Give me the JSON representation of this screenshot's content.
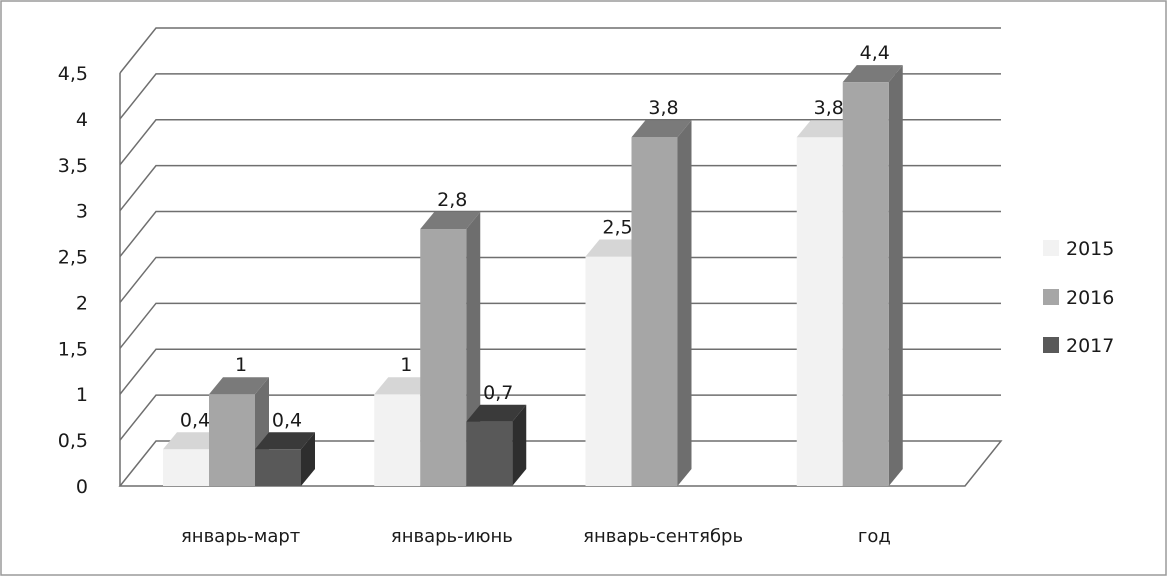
{
  "chart_data": {
    "type": "bar",
    "title": "",
    "xlabel": "",
    "ylabel": "",
    "categories": [
      "январь-март",
      "январь-июнь",
      "январь-сентябрь",
      "год"
    ],
    "series": [
      {
        "name": "2015",
        "values": [
          0.4,
          1,
          2.5,
          3.8
        ],
        "labels": [
          "0,4",
          "1",
          "2,5",
          "3,8"
        ],
        "color": "#f2f2f2",
        "side_color": "#dddddd",
        "top_color": "#d6d6d6"
      },
      {
        "name": "2016",
        "values": [
          1,
          2.8,
          3.8,
          4.4
        ],
        "labels": [
          "1",
          "2,8",
          "3,8",
          "4,4"
        ],
        "color": "#a6a6a6",
        "side_color": "#6e6e6e",
        "top_color": "#7a7a7a"
      },
      {
        "name": "2017",
        "values": [
          0.4,
          0.7,
          null,
          null
        ],
        "labels": [
          "0,4",
          "0,7",
          "",
          ""
        ],
        "color": "#595959",
        "side_color": "#2e2e2e",
        "top_color": "#3a3a3a"
      }
    ],
    "yticks": [
      "0",
      "0,5",
      "1",
      "1,5",
      "2",
      "2,5",
      "3",
      "3,5",
      "4",
      "4,5"
    ],
    "ylim": [
      0,
      4.5
    ],
    "grid": true,
    "legend_position": "right",
    "three_d": true
  }
}
